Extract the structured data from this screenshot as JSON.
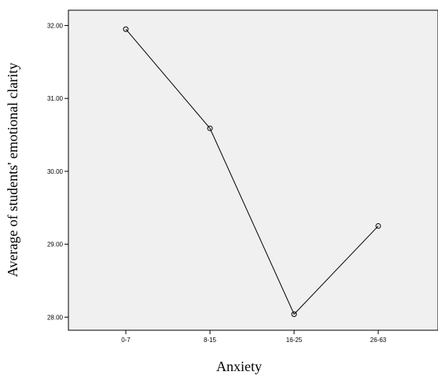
{
  "chart_data": {
    "type": "line",
    "title": "",
    "xlabel": "Anxiety",
    "ylabel": "Average of students' emotional clarity",
    "categories": [
      "0-7",
      "8-15",
      "16-25",
      "26-63"
    ],
    "series": [
      {
        "values": [
          31.95,
          30.59,
          28.04,
          29.25
        ]
      }
    ],
    "yticks": [
      "28.00",
      "29.00",
      "30.00",
      "31.00",
      "32.00"
    ],
    "ylim": [
      27.82,
      32.21
    ],
    "grid": false,
    "legend": "none",
    "colors": {
      "plot_background": "#f0f0f0",
      "line": "#000000",
      "frame": "#000000"
    },
    "marker": "open-circle"
  }
}
